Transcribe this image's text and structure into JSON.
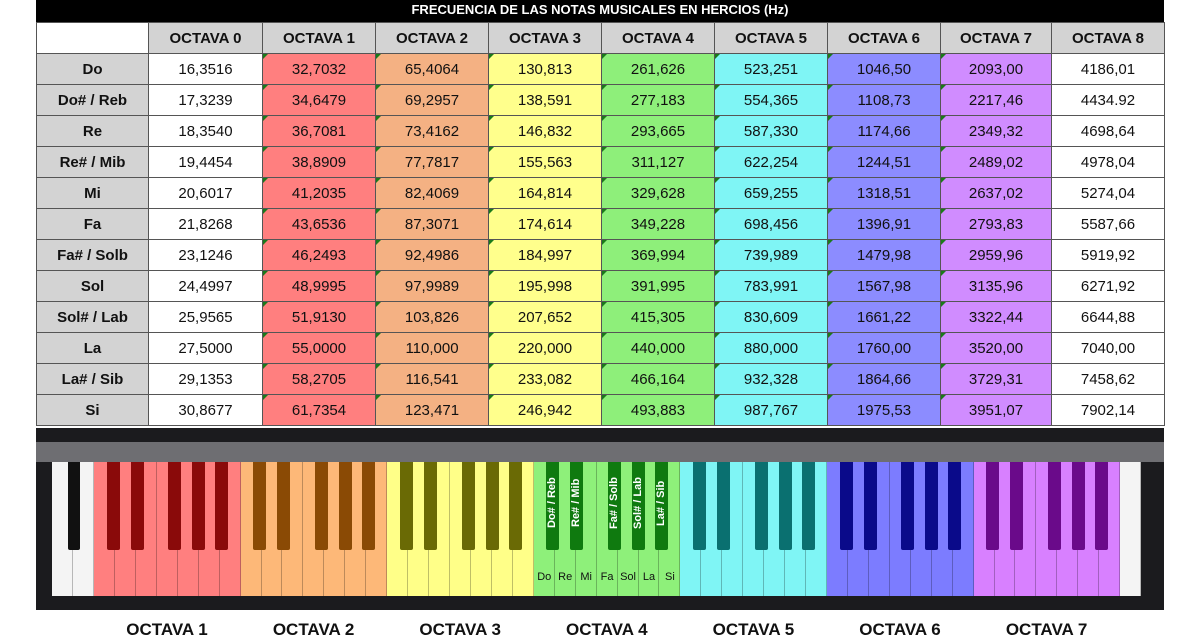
{
  "title": "FRECUENCIA DE LAS NOTAS MUSICALES EN HERCIOS (Hz)",
  "headers": [
    "OCTAVA 0",
    "OCTAVA 1",
    "OCTAVA 2",
    "OCTAVA 3",
    "OCTAVA 4",
    "OCTAVA 5",
    "OCTAVA 6",
    "OCTAVA 7",
    "OCTAVA 8"
  ],
  "column_colors": [
    "#ffffff",
    "#ff7f7f",
    "#f4b183",
    "#ffff8c",
    "#8eef7a",
    "#7ff5f5",
    "#8c8cff",
    "#d08cff",
    "#ffffff"
  ],
  "rows": [
    {
      "note": "Do",
      "values": [
        "16,3516",
        "32,7032",
        "65,4064",
        "130,813",
        "261,626",
        "523,251",
        "1046,50",
        "2093,00",
        "4186,01"
      ]
    },
    {
      "note": "Do# / Reb",
      "values": [
        "17,3239",
        "34,6479",
        "69,2957",
        "138,591",
        "277,183",
        "554,365",
        "1108,73",
        "2217,46",
        "4434.92"
      ]
    },
    {
      "note": "Re",
      "values": [
        "18,3540",
        "36,7081",
        "73,4162",
        "146,832",
        "293,665",
        "587,330",
        "1174,66",
        "2349,32",
        "4698,64"
      ]
    },
    {
      "note": "Re# / Mib",
      "values": [
        "19,4454",
        "38,8909",
        "77,7817",
        "155,563",
        "311,127",
        "622,254",
        "1244,51",
        "2489,02",
        "4978,04"
      ]
    },
    {
      "note": "Mi",
      "values": [
        "20,6017",
        "41,2035",
        "82,4069",
        "164,814",
        "329,628",
        "659,255",
        "1318,51",
        "2637,02",
        "5274,04"
      ]
    },
    {
      "note": "Fa",
      "values": [
        "21,8268",
        "43,6536",
        "87,3071",
        "174,614",
        "349,228",
        "698,456",
        "1396,91",
        "2793,83",
        "5587,66"
      ]
    },
    {
      "note": "Fa# / Solb",
      "values": [
        "23,1246",
        "46,2493",
        "92,4986",
        "184,997",
        "369,994",
        "739,989",
        "1479,98",
        "2959,96",
        "5919,92"
      ]
    },
    {
      "note": "Sol",
      "values": [
        "24,4997",
        "48,9995",
        "97,9989",
        "195,998",
        "391,995",
        "783,991",
        "1567,98",
        "3135,96",
        "6271,92"
      ]
    },
    {
      "note": "Sol# / Lab",
      "values": [
        "25,9565",
        "51,9130",
        "103,826",
        "207,652",
        "415,305",
        "830,609",
        "1661,22",
        "3322,44",
        "6644,88"
      ]
    },
    {
      "note": "La",
      "values": [
        "27,5000",
        "55,0000",
        "110,000",
        "220,000",
        "440,000",
        "880,000",
        "1760,00",
        "3520,00",
        "7040,00"
      ]
    },
    {
      "note": "La# / Sib",
      "values": [
        "29,1353",
        "58,2705",
        "116,541",
        "233,082",
        "466,164",
        "932,328",
        "1864,66",
        "3729,31",
        "7458,62"
      ]
    },
    {
      "note": "Si",
      "values": [
        "30,8677",
        "61,7354",
        "123,471",
        "246,942",
        "493,883",
        "987,767",
        "1975,53",
        "3951,07",
        "7902,14"
      ]
    }
  ],
  "piano": {
    "octaves": [
      {
        "label": "OCTAVA 1",
        "white": "#ff7f7f",
        "black": "#8a0a0a"
      },
      {
        "label": "OCTAVA 2",
        "white": "#fdb878",
        "black": "#8a4a05"
      },
      {
        "label": "OCTAVA 3",
        "white": "#ffff88",
        "black": "#6a6a05"
      },
      {
        "label": "OCTAVA 4",
        "white": "#8ef07a",
        "black": "#0f7a0f"
      },
      {
        "label": "OCTAVA 5",
        "white": "#7ff5f5",
        "black": "#0a7070"
      },
      {
        "label": "OCTAVA 6",
        "white": "#7c7cff",
        "black": "#0a0a8a"
      },
      {
        "label": "OCTAVA 7",
        "white": "#d880ff",
        "black": "#6a0a8a"
      }
    ],
    "white_labels": [
      "Do",
      "Re",
      "Mi",
      "Fa",
      "Sol",
      "La",
      "Si"
    ],
    "black_labels": [
      "Do# / Reb",
      "Re# / Mib",
      "Fa# / Solb",
      "Sol# / Lab",
      "La# / Sib"
    ]
  }
}
